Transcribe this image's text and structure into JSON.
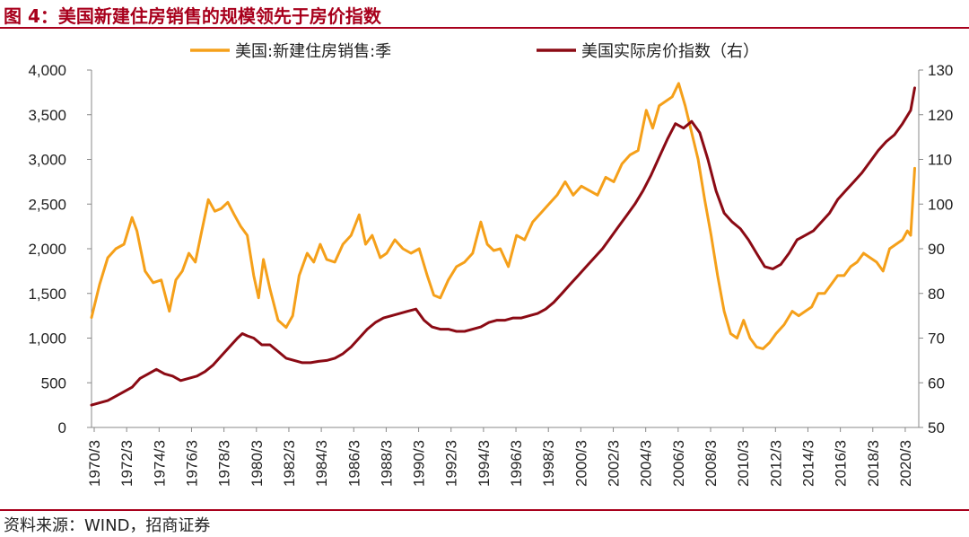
{
  "header": {
    "title": "图 4：美国新建住房销售的规模领先于房价指数"
  },
  "footer": {
    "source": "资料来源：WIND，招商证券"
  },
  "chart_data": {
    "type": "line",
    "legend_position": "top",
    "grid": false,
    "left_axis": {
      "ylim": [
        0,
        4000
      ],
      "ticks": [
        0,
        500,
        1000,
        1500,
        2000,
        2500,
        3000,
        3500,
        4000
      ],
      "tick_labels": [
        "0",
        "500",
        "1,000",
        "1,500",
        "2,000",
        "2,500",
        "3,000",
        "3,500",
        "4,000"
      ]
    },
    "right_axis": {
      "ylim": [
        50,
        130
      ],
      "ticks": [
        50,
        60,
        70,
        80,
        90,
        100,
        110,
        120,
        130
      ],
      "tick_labels": [
        "50",
        "60",
        "70",
        "80",
        "90",
        "100",
        "110",
        "120",
        "130"
      ]
    },
    "x_axis": {
      "range": [
        1970,
        2021
      ],
      "tick_labels": [
        "1970/3",
        "1972/3",
        "1974/3",
        "1976/3",
        "1978/3",
        "1980/3",
        "1982/3",
        "1984/3",
        "1986/3",
        "1988/3",
        "1990/3",
        "1992/3",
        "1994/3",
        "1996/3",
        "1998/3",
        "2000/3",
        "2002/3",
        "2004/3",
        "2006/3",
        "2008/3",
        "2010/3",
        "2012/3",
        "2014/3",
        "2016/3",
        "2018/3",
        "2020/3"
      ]
    },
    "series": [
      {
        "name": "美国:新建住房销售:季",
        "axis": "left",
        "color": "#f5a01a",
        "x": [
          1970.0,
          1970.5,
          1971.0,
          1971.5,
          1972.0,
          1972.5,
          1972.8,
          1973.3,
          1973.8,
          1974.3,
          1974.8,
          1975.2,
          1975.6,
          1976.0,
          1976.4,
          1976.8,
          1977.2,
          1977.6,
          1978.0,
          1978.4,
          1978.8,
          1979.2,
          1979.6,
          1980.0,
          1980.3,
          1980.6,
          1981.0,
          1981.5,
          1982.0,
          1982.4,
          1982.8,
          1983.3,
          1983.7,
          1984.1,
          1984.5,
          1985.0,
          1985.5,
          1986.0,
          1986.5,
          1986.9,
          1987.3,
          1987.8,
          1988.2,
          1988.7,
          1989.2,
          1989.7,
          1990.2,
          1990.7,
          1991.1,
          1991.5,
          1992.0,
          1992.5,
          1993.0,
          1993.5,
          1994.0,
          1994.4,
          1994.8,
          1995.2,
          1995.7,
          1996.2,
          1996.7,
          1997.2,
          1997.7,
          1998.2,
          1998.7,
          1999.2,
          1999.7,
          2000.2,
          2000.7,
          2001.2,
          2001.7,
          2002.2,
          2002.7,
          2003.2,
          2003.7,
          2004.2,
          2004.6,
          2005.0,
          2005.4,
          2005.8,
          2006.2,
          2006.6,
          2007.0,
          2007.4,
          2007.8,
          2008.2,
          2008.6,
          2009.0,
          2009.4,
          2009.8,
          2010.2,
          2010.6,
          2011.0,
          2011.4,
          2011.8,
          2012.2,
          2012.7,
          2013.2,
          2013.6,
          2014.0,
          2014.4,
          2014.8,
          2015.2,
          2015.6,
          2016.0,
          2016.4,
          2016.8,
          2017.2,
          2017.6,
          2018.0,
          2018.4,
          2018.8,
          2019.2,
          2019.6,
          2020.0,
          2020.3,
          2020.5,
          2020.75
        ],
        "values": [
          1230,
          1600,
          1900,
          2000,
          2050,
          2350,
          2200,
          1750,
          1620,
          1650,
          1300,
          1650,
          1750,
          1950,
          1850,
          2200,
          2550,
          2420,
          2450,
          2520,
          2380,
          2250,
          2150,
          1700,
          1450,
          1880,
          1550,
          1200,
          1120,
          1250,
          1700,
          1950,
          1850,
          2050,
          1880,
          1850,
          2050,
          2150,
          2380,
          2050,
          2150,
          1900,
          1950,
          2100,
          2000,
          1950,
          2000,
          1700,
          1480,
          1450,
          1650,
          1800,
          1850,
          1950,
          2300,
          2050,
          1980,
          2000,
          1800,
          2150,
          2100,
          2300,
          2400,
          2500,
          2600,
          2750,
          2600,
          2700,
          2650,
          2600,
          2800,
          2750,
          2950,
          3050,
          3100,
          3550,
          3350,
          3600,
          3650,
          3700,
          3850,
          3600,
          3300,
          3000,
          2550,
          2150,
          1700,
          1300,
          1050,
          1000,
          1200,
          1000,
          900,
          880,
          950,
          1050,
          1150,
          1300,
          1250,
          1300,
          1350,
          1500,
          1500,
          1600,
          1700,
          1700,
          1800,
          1850,
          1950,
          1900,
          1850,
          1750,
          2000,
          2050,
          2100,
          2200,
          2150,
          2900
        ]
      },
      {
        "name": "美国实际房价指数（右）",
        "axis": "right",
        "color": "#8b0a14",
        "x": [
          1970.0,
          1970.5,
          1971.0,
          1971.5,
          1972.0,
          1972.5,
          1973.0,
          1973.5,
          1974.0,
          1974.5,
          1975.0,
          1975.5,
          1976.0,
          1976.5,
          1977.0,
          1977.5,
          1978.0,
          1978.5,
          1979.0,
          1979.3,
          1979.6,
          1980.0,
          1980.5,
          1981.0,
          1981.5,
          1982.0,
          1982.5,
          1983.0,
          1983.5,
          1984.0,
          1984.5,
          1985.0,
          1985.5,
          1986.0,
          1986.5,
          1987.0,
          1987.5,
          1988.0,
          1988.5,
          1989.0,
          1989.5,
          1990.0,
          1990.5,
          1991.0,
          1991.5,
          1992.0,
          1992.5,
          1993.0,
          1993.5,
          1994.0,
          1994.5,
          1995.0,
          1995.5,
          1996.0,
          1996.5,
          1997.0,
          1997.5,
          1998.0,
          1998.5,
          1999.0,
          1999.5,
          2000.0,
          2000.5,
          2001.0,
          2001.5,
          2002.0,
          2002.5,
          2003.0,
          2003.5,
          2004.0,
          2004.5,
          2005.0,
          2005.5,
          2006.0,
          2006.5,
          2007.0,
          2007.5,
          2008.0,
          2008.5,
          2009.0,
          2009.5,
          2010.0,
          2010.5,
          2011.0,
          2011.5,
          2012.0,
          2012.5,
          2013.0,
          2013.5,
          2014.0,
          2014.5,
          2015.0,
          2015.5,
          2016.0,
          2016.5,
          2017.0,
          2017.5,
          2018.0,
          2018.5,
          2019.0,
          2019.5,
          2020.0,
          2020.5,
          2020.75
        ],
        "values": [
          55,
          55.5,
          56,
          57,
          58,
          59,
          61,
          62,
          63,
          62,
          61.5,
          60.5,
          61,
          61.5,
          62.5,
          64,
          66,
          68,
          70,
          71,
          70.5,
          70,
          68.5,
          68.5,
          67,
          65.5,
          65,
          64.5,
          64.5,
          64.8,
          65,
          65.5,
          66.5,
          68,
          70,
          72,
          73.5,
          74.5,
          75,
          75.5,
          76,
          76.5,
          74,
          72.5,
          72,
          72,
          71.5,
          71.5,
          72,
          72.5,
          73.5,
          74,
          74,
          74.5,
          74.5,
          75,
          75.5,
          76.5,
          78,
          80,
          82,
          84,
          86,
          88,
          90,
          92.5,
          95,
          97.5,
          100,
          103,
          106.5,
          110.5,
          114.5,
          118,
          117,
          118.5,
          116,
          110,
          103,
          98,
          96,
          94.5,
          92,
          89,
          86,
          85.5,
          86.5,
          89,
          92,
          93,
          94,
          96,
          98,
          101,
          103,
          105,
          107,
          109.5,
          112,
          114,
          115.5,
          118,
          121,
          126
        ]
      }
    ]
  }
}
